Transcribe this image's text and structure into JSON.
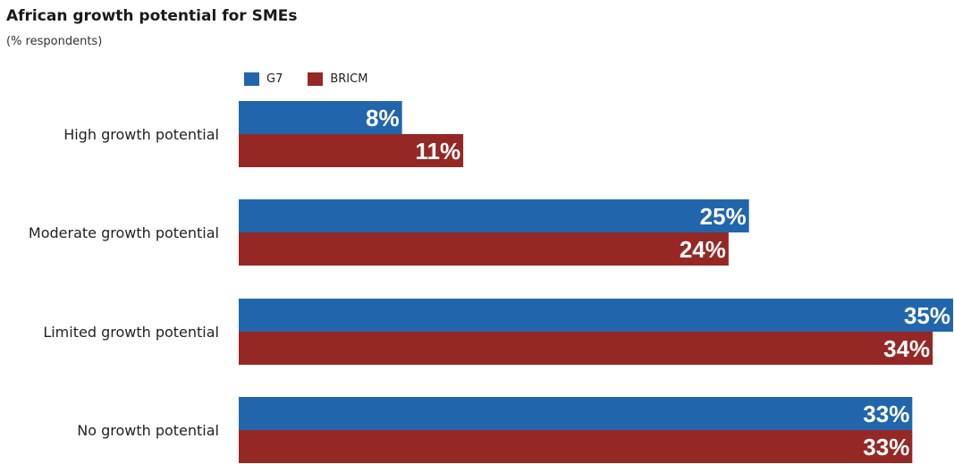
{
  "chart_data": {
    "type": "bar",
    "orientation": "horizontal",
    "title": "African growth potential for SMEs",
    "subtitle": "(% respondents)",
    "categories": [
      "High growth potential",
      "Moderate growth potential",
      "Limited growth potential",
      "No growth potential"
    ],
    "series": [
      {
        "name": "G7",
        "color": "#2166ac",
        "values": [
          8,
          25,
          35,
          33
        ],
        "labels": [
          "8%",
          "25%",
          "35%",
          "33%"
        ]
      },
      {
        "name": "BRICM",
        "color": "#952825",
        "values": [
          11,
          24,
          34,
          33
        ],
        "labels": [
          "11%",
          "24%",
          "34%",
          "33%"
        ]
      }
    ],
    "xlim": [
      0,
      35
    ],
    "legend": "top",
    "grid": false
  }
}
